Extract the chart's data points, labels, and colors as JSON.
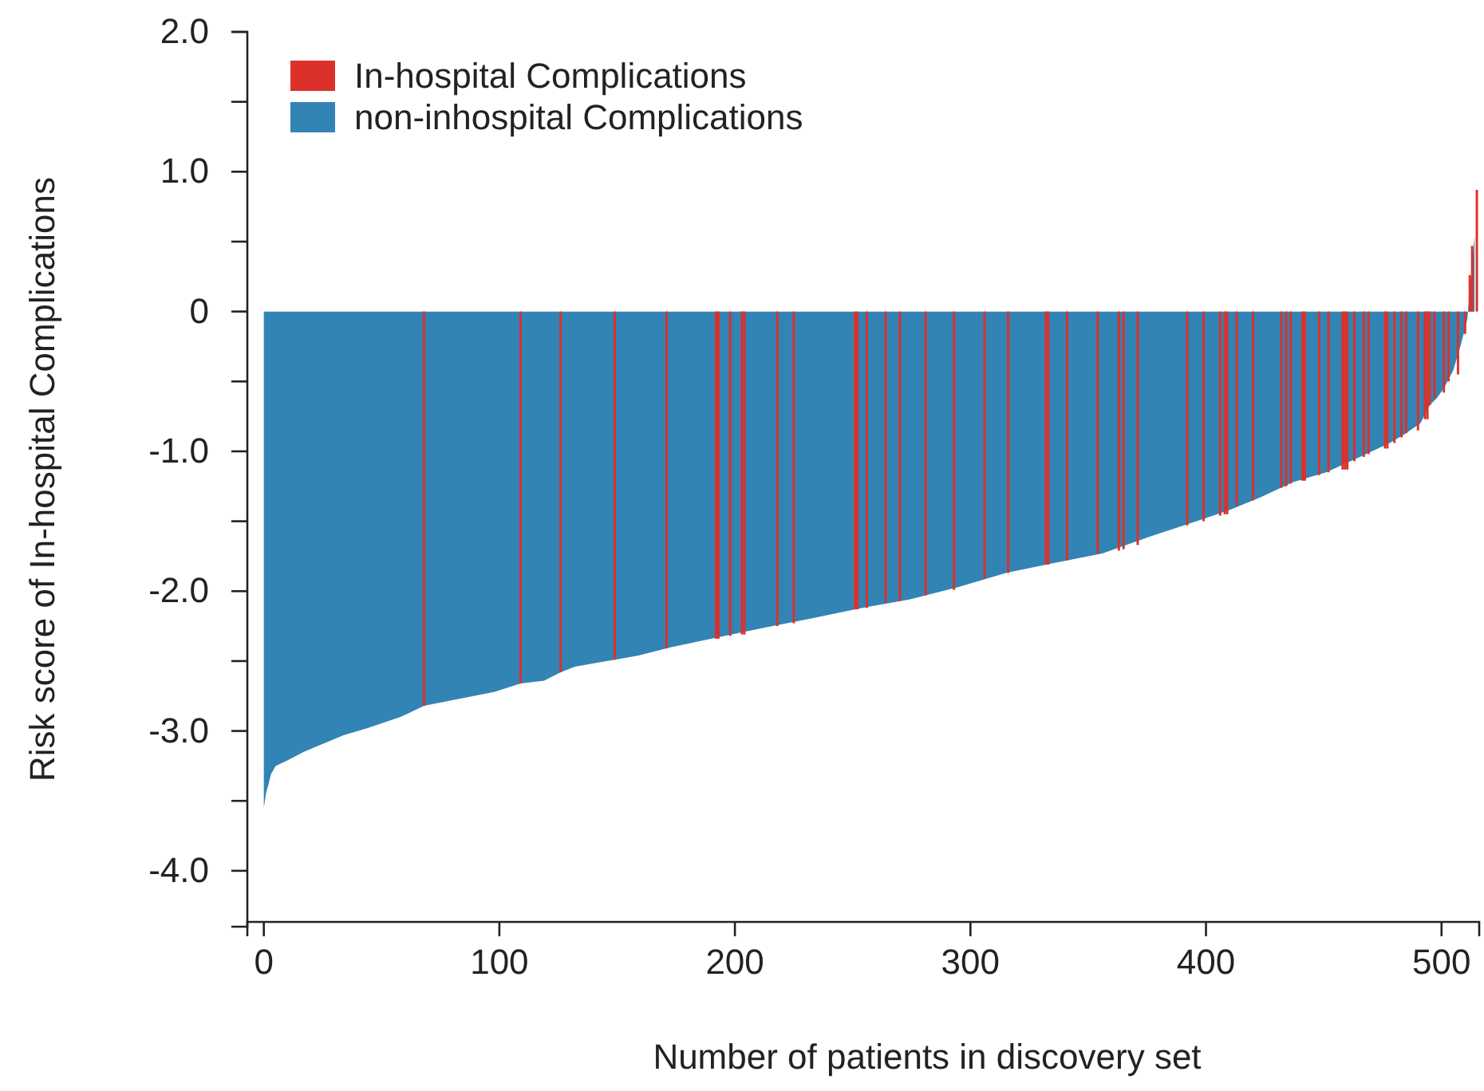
{
  "chart_data": {
    "type": "bar",
    "xlabel": "Number of patients in discovery set",
    "ylabel": "Risk score of In-hospital Complications",
    "xlim": [
      -7,
      516
    ],
    "ylim": [
      -4.4,
      2
    ],
    "xticks": [
      0,
      100,
      200,
      300,
      400,
      500
    ],
    "yticks": [
      {
        "value": 2,
        "label": "2.0"
      },
      {
        "value": 1.5,
        "label": null
      },
      {
        "value": 1,
        "label": "1.0"
      },
      {
        "value": 0.5,
        "label": null
      },
      0,
      {
        "value": -0.5,
        "label": null
      },
      {
        "value": -1,
        "label": "-1.0"
      },
      {
        "value": -1.5,
        "label": null
      },
      {
        "value": -2,
        "label": "-2.0"
      },
      {
        "value": -2.5,
        "label": null
      },
      {
        "value": -3,
        "label": "-3.0"
      },
      {
        "value": -3.5,
        "label": null
      },
      {
        "value": -4,
        "label": "-4.0"
      }
    ],
    "legend": "top left",
    "series": [
      {
        "name": "non-inhospital Complications",
        "type": "area",
        "color": "#3284b5",
        "x": [
          0,
          1,
          2,
          3,
          5,
          10,
          17,
          24,
          34,
          44,
          58,
          68,
          80,
          98,
          109,
          119,
          126,
          132,
          149,
          159,
          173,
          193,
          213,
          234,
          254,
          274,
          295,
          315,
          335,
          356,
          376,
          396,
          410,
          423,
          437,
          451,
          464,
          478,
          484,
          491,
          495,
          498,
          501,
          505,
          508,
          510,
          511,
          514
        ],
        "values": [
          -3.55,
          -3.44,
          -3.38,
          -3.31,
          -3.25,
          -3.21,
          -3.15,
          -3.1,
          -3.03,
          -2.98,
          -2.9,
          -2.82,
          -2.78,
          -2.72,
          -2.66,
          -2.64,
          -2.58,
          -2.54,
          -2.49,
          -2.46,
          -2.4,
          -2.33,
          -2.26,
          -2.19,
          -2.12,
          -2.06,
          -1.97,
          -1.87,
          -1.8,
          -1.73,
          -1.61,
          -1.5,
          -1.42,
          -1.33,
          -1.22,
          -1.15,
          -1.05,
          -0.94,
          -0.88,
          -0.8,
          -0.67,
          -0.62,
          -0.55,
          -0.42,
          -0.25,
          -0.12,
          -0.05,
          0.54
        ]
      },
      {
        "name": "In-hospital Complications",
        "color": "#dc312b",
        "x": [
          68,
          109,
          126,
          149,
          171,
          192,
          193,
          198,
          203,
          204,
          218,
          225,
          251,
          252,
          256,
          264,
          270,
          281,
          293,
          306,
          316,
          332,
          333,
          341,
          354,
          363,
          365,
          371,
          392,
          399,
          406,
          408,
          409,
          413,
          420,
          432,
          434,
          436,
          441,
          442,
          448,
          452,
          458,
          459,
          460,
          463,
          467,
          469,
          476,
          477,
          480,
          483,
          485,
          490,
          493,
          494,
          495,
          497,
          501,
          503,
          507,
          510,
          512,
          513,
          515
        ],
        "values": [
          -2.82,
          -2.66,
          -2.58,
          -2.49,
          -2.41,
          -2.34,
          -2.34,
          -2.32,
          -2.31,
          -2.31,
          -2.25,
          -2.23,
          -2.13,
          -2.13,
          -2.12,
          -2.08,
          -2.07,
          -2.03,
          -1.99,
          -1.91,
          -1.87,
          -1.81,
          -1.81,
          -1.78,
          -1.73,
          -1.71,
          -1.7,
          -1.67,
          -1.53,
          -1.5,
          -1.46,
          -1.45,
          -1.45,
          -1.39,
          -1.35,
          -1.26,
          -1.25,
          -1.23,
          -1.21,
          -1.21,
          -1.17,
          -1.15,
          -1.13,
          -1.13,
          -1.13,
          -1.07,
          -1.04,
          -1.02,
          -0.98,
          -0.98,
          -0.94,
          -0.9,
          -0.87,
          -0.85,
          -0.77,
          -0.77,
          -0.67,
          -0.62,
          -0.58,
          -0.5,
          -0.45,
          -0.16,
          0.26,
          0.47,
          0.87
        ]
      }
    ]
  }
}
